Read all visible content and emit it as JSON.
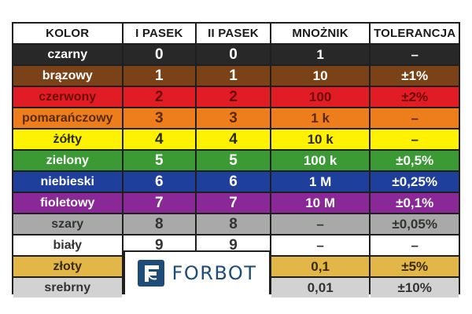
{
  "header": [
    "KOLOR",
    "I PASEK",
    "II PASEK",
    "MNOŻNIK",
    "TOLERANCJA"
  ],
  "rows": [
    {
      "name": "czarny",
      "c1": "0",
      "c2": "0",
      "mult": "1",
      "tol": "–",
      "bg": "#282828",
      "fg": "#ffffff"
    },
    {
      "name": "brązowy",
      "c1": "1",
      "c2": "1",
      "mult": "10",
      "tol": "±1%",
      "bg": "#7a4216",
      "fg": "#ffffff"
    },
    {
      "name": "czerwony",
      "c1": "2",
      "c2": "2",
      "mult": "100",
      "tol": "±2%",
      "bg": "#e11c25",
      "fg": "#6e0a0a"
    },
    {
      "name": "pomarańczowy",
      "c1": "3",
      "c2": "3",
      "mult": "1 k",
      "tol": "–",
      "bg": "#ee7d1c",
      "fg": "#5a2a05"
    },
    {
      "name": "żółty",
      "c1": "4",
      "c2": "4",
      "mult": "10 k",
      "tol": "–",
      "bg": "#fff200",
      "fg": "#2a2a00"
    },
    {
      "name": "zielony",
      "c1": "5",
      "c2": "5",
      "mult": "100 k",
      "tol": "±0,5%",
      "bg": "#3c9a35",
      "fg": "#ffffff"
    },
    {
      "name": "niebieski",
      "c1": "6",
      "c2": "6",
      "mult": "1 M",
      "tol": "±0,25%",
      "bg": "#1f3f9c",
      "fg": "#ffffff"
    },
    {
      "name": "fioletowy",
      "c1": "7",
      "c2": "7",
      "mult": "10 M",
      "tol": "±0,1%",
      "bg": "#8a2898",
      "fg": "#ffffff"
    },
    {
      "name": "szary",
      "c1": "8",
      "c2": "8",
      "mult": "–",
      "tol": "±0,05%",
      "bg": "#a9a9a9",
      "fg": "#333333"
    },
    {
      "name": "biały",
      "c1": "9",
      "c2": "9",
      "mult": "–",
      "tol": "–",
      "bg": "#ffffff",
      "fg": "#333333"
    },
    {
      "name": "złoty",
      "c1": "",
      "c2": "",
      "mult": "0,1",
      "tol": "±5%",
      "bg": "#e2b747",
      "fg": "#3a2a05"
    },
    {
      "name": "srebrny",
      "c1": "",
      "c2": "",
      "mult": "0,01",
      "tol": "±10%",
      "bg": "#d2d2d2",
      "fg": "#333333"
    }
  ],
  "logo": {
    "text": "FORBOT",
    "color": "#1e4c79",
    "icon": "forbot-logo-icon"
  }
}
